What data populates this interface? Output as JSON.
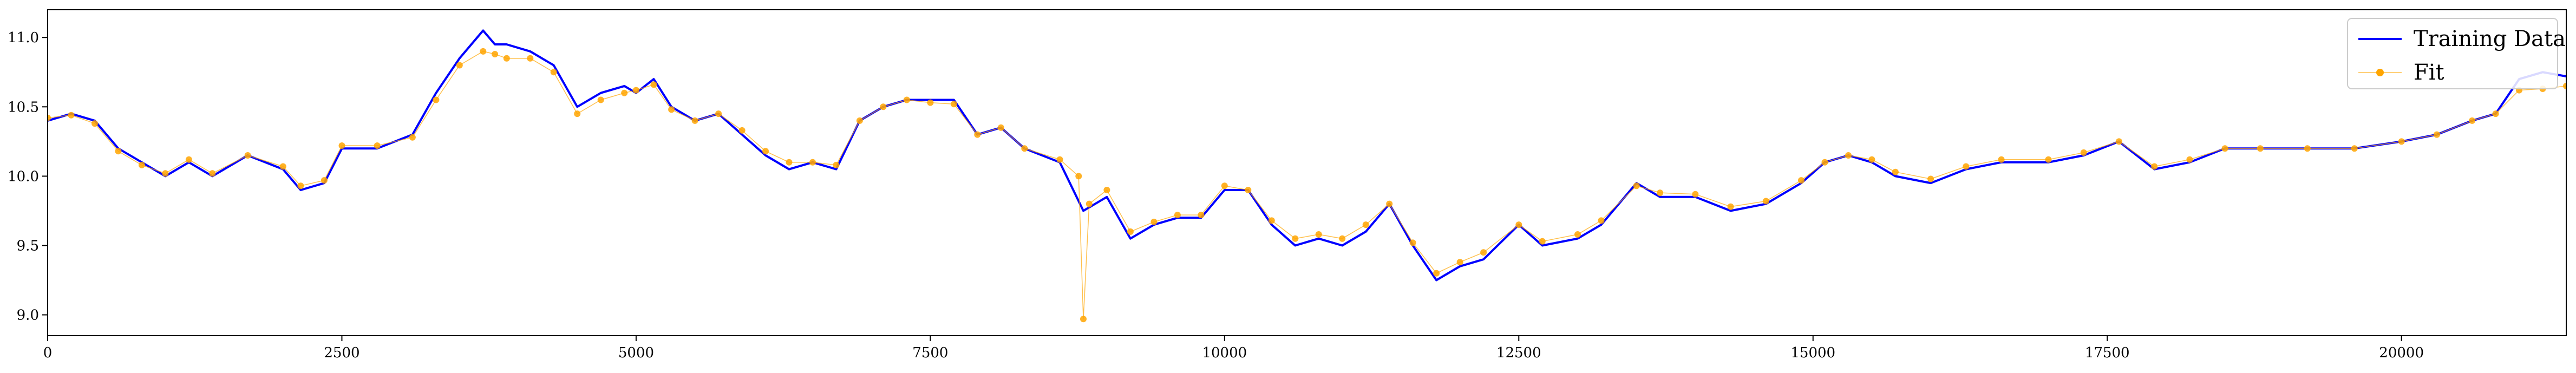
{
  "chart_data": {
    "type": "line",
    "title": "",
    "xlabel": "",
    "ylabel": "",
    "xlim": [
      0,
      21400
    ],
    "ylim": [
      8.85,
      11.2
    ],
    "grid": false,
    "legend_placement": "top-right",
    "x_ticks": [
      0,
      2500,
      5000,
      7500,
      10000,
      12500,
      15000,
      17500,
      20000
    ],
    "x_tick_labels": [
      "0",
      "2500",
      "5000",
      "7500",
      "10000",
      "12500",
      "15000",
      "17500",
      "20000"
    ],
    "y_ticks": [
      9.0,
      9.5,
      10.0,
      10.5,
      11.0
    ],
    "y_tick_labels": [
      "9.0",
      "9.5",
      "10.0",
      "10.5",
      "11.0"
    ],
    "series": [
      {
        "name": "Training Data",
        "color": "#0000ff",
        "style": "line",
        "x": [
          0,
          200,
          400,
          600,
          800,
          1000,
          1200,
          1400,
          1700,
          2000,
          2150,
          2350,
          2500,
          2800,
          3100,
          3300,
          3500,
          3700,
          3800,
          3900,
          4100,
          4300,
          4500,
          4700,
          4900,
          5000,
          5150,
          5300,
          5500,
          5700,
          5900,
          6100,
          6300,
          6500,
          6700,
          6900,
          7100,
          7300,
          7500,
          7700,
          7900,
          8100,
          8300,
          8600,
          8800,
          9000,
          9200,
          9400,
          9600,
          9800,
          10000,
          10200,
          10400,
          10600,
          10800,
          11000,
          11200,
          11400,
          11600,
          11800,
          12000,
          12200,
          12500,
          12700,
          13000,
          13200,
          13500,
          13700,
          14000,
          14300,
          14600,
          14900,
          15100,
          15300,
          15500,
          15700,
          16000,
          16300,
          16600,
          17000,
          17300,
          17600,
          17900,
          18200,
          18500,
          18800,
          19200,
          19600,
          20000,
          20300,
          20600,
          20800,
          21000,
          21200,
          21400
        ],
        "y": [
          10.4,
          10.45,
          10.4,
          10.2,
          10.1,
          10.0,
          10.1,
          10.0,
          10.15,
          10.05,
          9.9,
          9.95,
          10.2,
          10.2,
          10.3,
          10.6,
          10.85,
          11.05,
          10.95,
          10.95,
          10.9,
          10.8,
          10.5,
          10.6,
          10.65,
          10.6,
          10.7,
          10.5,
          10.4,
          10.45,
          10.3,
          10.15,
          10.05,
          10.1,
          10.05,
          10.4,
          10.5,
          10.55,
          10.55,
          10.55,
          10.3,
          10.35,
          10.2,
          10.1,
          9.75,
          9.85,
          9.55,
          9.65,
          9.7,
          9.7,
          9.9,
          9.9,
          9.65,
          9.5,
          9.55,
          9.5,
          9.6,
          9.8,
          9.5,
          9.25,
          9.35,
          9.4,
          9.65,
          9.5,
          9.55,
          9.65,
          9.95,
          9.85,
          9.85,
          9.75,
          9.8,
          9.95,
          10.1,
          10.15,
          10.1,
          10.0,
          9.95,
          10.05,
          10.1,
          10.1,
          10.15,
          10.25,
          10.05,
          10.1,
          10.2,
          10.2,
          10.2,
          10.2,
          10.25,
          10.3,
          10.4,
          10.45,
          10.7,
          10.75,
          10.72
        ]
      },
      {
        "name": "Fit",
        "color": "#ffa500",
        "style": "line-with-markers",
        "x": [
          0,
          200,
          400,
          600,
          800,
          1000,
          1200,
          1400,
          1700,
          2000,
          2150,
          2350,
          2500,
          2800,
          3100,
          3300,
          3500,
          3700,
          3800,
          3900,
          4100,
          4300,
          4500,
          4700,
          4900,
          5000,
          5150,
          5300,
          5500,
          5700,
          5900,
          6100,
          6300,
          6500,
          6700,
          6900,
          7100,
          7300,
          7500,
          7700,
          7900,
          8100,
          8300,
          8600,
          8760,
          8800,
          8850,
          9000,
          9200,
          9400,
          9600,
          9800,
          10000,
          10200,
          10400,
          10600,
          10800,
          11000,
          11200,
          11400,
          11600,
          11800,
          12000,
          12200,
          12500,
          12700,
          13000,
          13200,
          13500,
          13700,
          14000,
          14300,
          14600,
          14900,
          15100,
          15300,
          15500,
          15700,
          16000,
          16300,
          16600,
          17000,
          17300,
          17600,
          17900,
          18200,
          18500,
          18800,
          19200,
          19600,
          20000,
          20300,
          20600,
          20800,
          21000,
          21200,
          21400
        ],
        "y": [
          10.42,
          10.44,
          10.38,
          10.18,
          10.08,
          10.02,
          10.12,
          10.02,
          10.15,
          10.07,
          9.93,
          9.97,
          10.22,
          10.22,
          10.28,
          10.55,
          10.8,
          10.9,
          10.88,
          10.85,
          10.85,
          10.75,
          10.45,
          10.55,
          10.6,
          10.62,
          10.66,
          10.48,
          10.4,
          10.45,
          10.33,
          10.18,
          10.1,
          10.1,
          10.08,
          10.4,
          10.5,
          10.55,
          10.53,
          10.52,
          10.3,
          10.35,
          10.2,
          10.12,
          10.0,
          8.97,
          9.8,
          9.9,
          9.6,
          9.67,
          9.72,
          9.72,
          9.93,
          9.9,
          9.68,
          9.55,
          9.58,
          9.55,
          9.65,
          9.8,
          9.52,
          9.3,
          9.38,
          9.45,
          9.65,
          9.53,
          9.58,
          9.68,
          9.93,
          9.88,
          9.87,
          9.78,
          9.82,
          9.97,
          10.1,
          10.15,
          10.12,
          10.03,
          9.98,
          10.07,
          10.12,
          10.12,
          10.17,
          10.25,
          10.07,
          10.12,
          10.2,
          10.2,
          10.2,
          10.2,
          10.25,
          10.3,
          10.4,
          10.45,
          10.62,
          10.63,
          10.65
        ]
      }
    ]
  },
  "colors": {
    "training_line": "#0000ff",
    "fit_line": "#ffa500",
    "axes": "#000000",
    "legend_border": "#cccccc"
  }
}
